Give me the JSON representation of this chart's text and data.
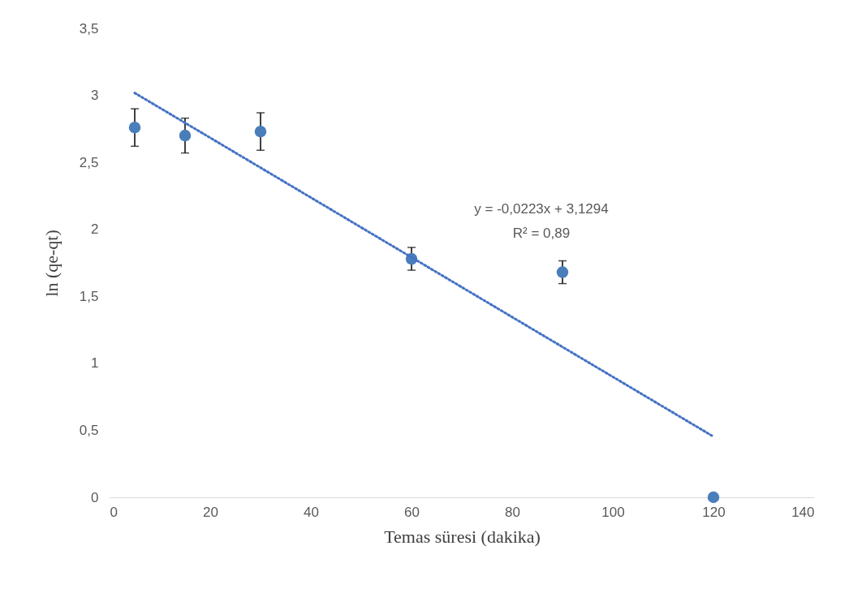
{
  "chart_data": {
    "type": "scatter",
    "xlabel": "Temas süresi (dakika)",
    "ylabel": "ln (qe-qt)",
    "xlim": [
      0,
      140
    ],
    "xticks": [
      0,
      20,
      40,
      60,
      80,
      100,
      120,
      140
    ],
    "ylim": [
      0,
      3.5
    ],
    "yticks": [
      0,
      {
        "value": 0.5,
        "label": "0,5"
      },
      1,
      {
        "value": 1.5,
        "label": "1,5"
      },
      2,
      {
        "value": 2.5,
        "label": "2,5"
      },
      3,
      {
        "value": 3.5,
        "label": "3,5"
      }
    ],
    "series": [
      {
        "color": "#4a7ebb",
        "marker": "circle",
        "x": [
          5,
          15,
          30,
          60,
          90,
          120
        ],
        "values": [
          2.76,
          2.7,
          2.73,
          1.78,
          1.68,
          0
        ],
        "errors": [
          0.14,
          0.13,
          0.14,
          0.085,
          0.085,
          null
        ]
      },
      {
        "type": "line",
        "color": "#4472c4",
        "line_style": "dotted",
        "x": [
          5,
          120
        ],
        "values": [
          3.018,
          0.453
        ]
      }
    ],
    "annotations": [
      "y = -0,0223x + 3,1294",
      "R² = 0,89"
    ],
    "grid": false
  }
}
